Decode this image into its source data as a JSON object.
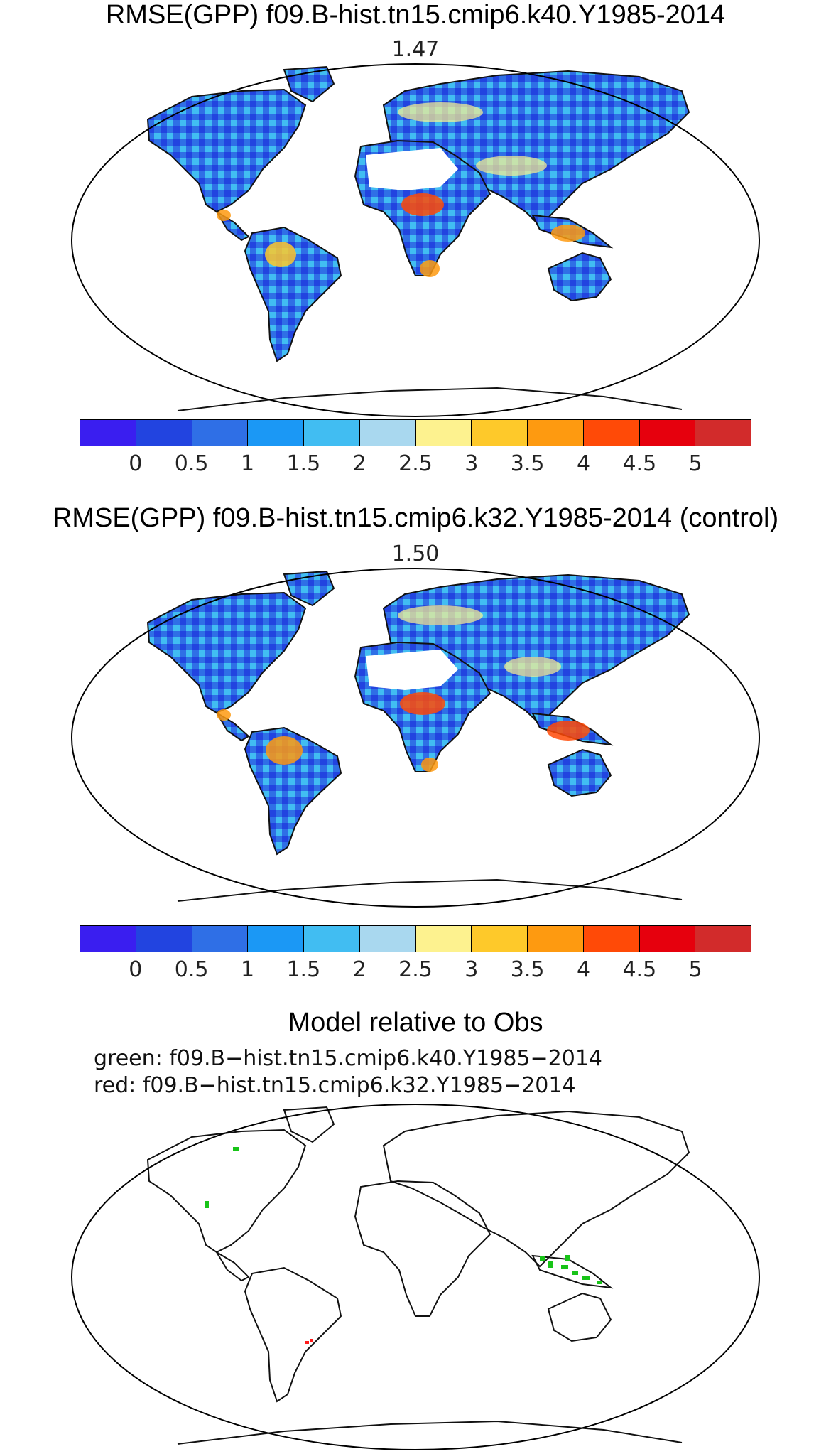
{
  "panels": [
    {
      "title": "RMSE(GPP) f09.B-hist.tn15.cmip6.k40.Y1985-2014",
      "value": "1.47",
      "colorbar_ticks": [
        "0",
        "0.5",
        "1",
        "1.5",
        "2",
        "2.5",
        "3",
        "3.5",
        "4",
        "4.5",
        "5"
      ]
    },
    {
      "title": "RMSE(GPP) f09.B-hist.tn15.cmip6.k32.Y1985-2014 (control)",
      "value": "1.50",
      "colorbar_ticks": [
        "0",
        "0.5",
        "1",
        "1.5",
        "2",
        "2.5",
        "3",
        "3.5",
        "4",
        "4.5",
        "5"
      ]
    },
    {
      "title": "Model relative to Obs",
      "legend_green": "green:  f09.B−hist.tn15.cmip6.k40.Y1985−2014",
      "legend_red": "red:  f09.B−hist.tn15.cmip6.k32.Y1985−2014"
    }
  ],
  "colors": {
    "colorbar": [
      "#3a1ef0",
      "#2244e0",
      "#2f6fe6",
      "#1b98f5",
      "#41bdf2",
      "#a9d8ef",
      "#fdf28f",
      "#fec92a",
      "#fe9a10",
      "#ff4a07",
      "#e6000d",
      "#d22b2b"
    ],
    "better_green": "#18c418",
    "better_red": "#ff1a1a"
  },
  "chart_data": [
    {
      "type": "heatmap",
      "title": "RMSE(GPP) f09.B-hist.tn15.cmip6.k40.Y1985-2014",
      "subtitle": "1.47",
      "colorbar_levels": [
        0,
        0.5,
        1,
        1.5,
        2,
        2.5,
        3,
        3.5,
        4,
        4.5,
        5
      ],
      "global_mean": 1.47
    },
    {
      "type": "heatmap",
      "title": "RMSE(GPP) f09.B-hist.tn15.cmip6.k32.Y1985-2014 (control)",
      "subtitle": "1.50",
      "colorbar_levels": [
        0,
        0.5,
        1,
        1.5,
        2,
        2.5,
        3,
        3.5,
        4,
        4.5,
        5
      ],
      "global_mean": 1.5
    },
    {
      "type": "heatmap",
      "title": "Model relative to Obs",
      "legend": [
        "green: f09.B−hist.tn15.cmip6.k40.Y1985−2014",
        "red: f09.B−hist.tn15.cmip6.k32.Y1985−2014"
      ]
    }
  ]
}
